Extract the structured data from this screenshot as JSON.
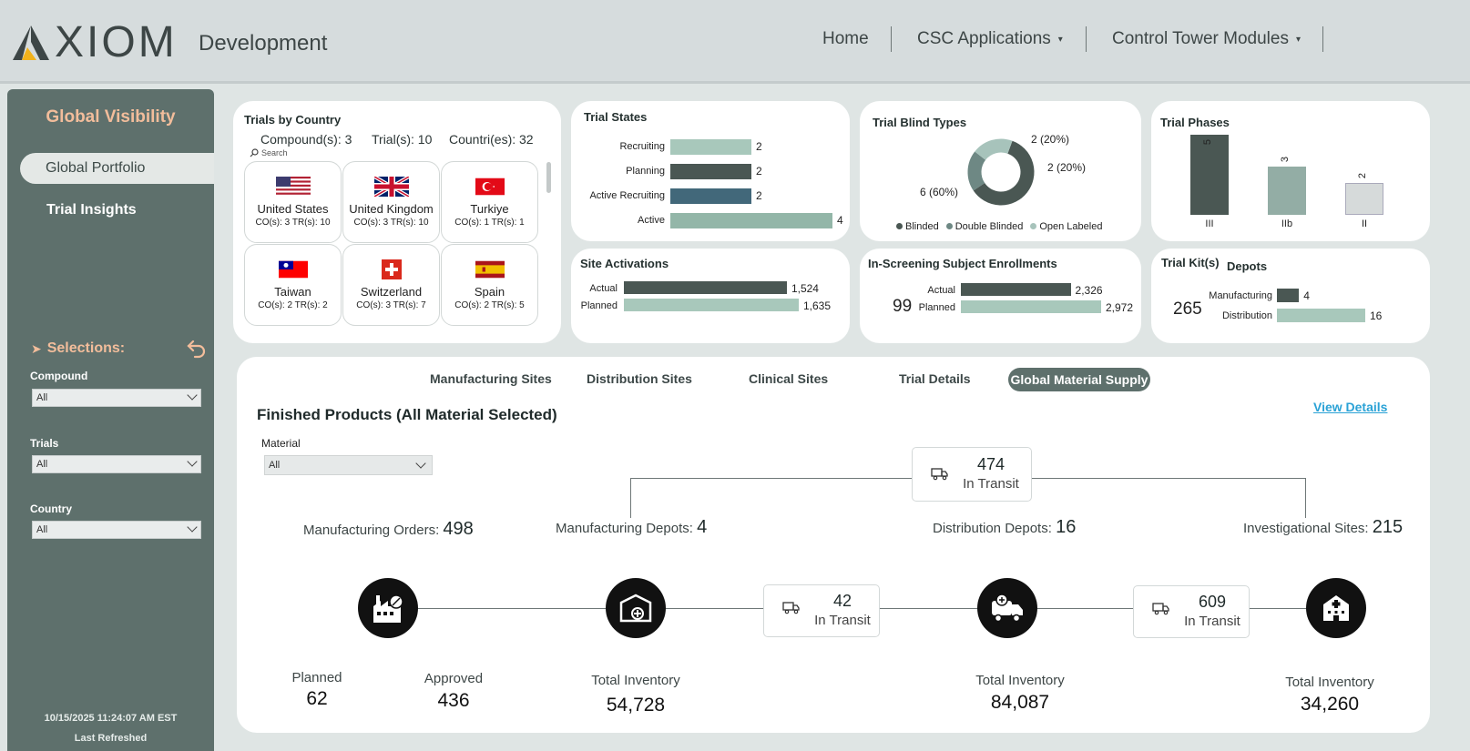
{
  "header": {
    "logo_text": "XIOM",
    "environment": "Development",
    "nav": [
      "Home",
      "CSC Applications",
      "Control Tower Modules"
    ]
  },
  "sidebar": {
    "title": "Global Visibility",
    "items": [
      {
        "label": "Global Portfolio",
        "active": true
      },
      {
        "label": "Trial Insights",
        "active": false
      }
    ],
    "selections_label": "Selections:",
    "filters": [
      {
        "label": "Compound",
        "value": "All"
      },
      {
        "label": "Trials",
        "value": "All"
      },
      {
        "label": "Country",
        "value": "All"
      }
    ],
    "last_refreshed": "10/15/2025 11:24:07 AM EST",
    "last_refreshed_label": "Last Refreshed"
  },
  "trials_by_country": {
    "title": "Trials by Country",
    "compounds": "Compound(s): 3",
    "trials": "Trial(s): 10",
    "countries": "Countri(es): 32",
    "search_placeholder": "Search",
    "tiles": [
      {
        "name": "United States",
        "stat": "CO(s): 3   TR(s): 10",
        "flag": "us-flag"
      },
      {
        "name": "United Kingdom",
        "stat": "CO(s): 3   TR(s): 10",
        "flag": "uk-flag"
      },
      {
        "name": "Turkiye",
        "stat": "CO(s): 1   TR(s): 1",
        "flag": "turkey-flag"
      },
      {
        "name": "Taiwan",
        "stat": "CO(s): 2   TR(s): 2",
        "flag": "taiwan-flag"
      },
      {
        "name": "Switzerland",
        "stat": "CO(s): 3   TR(s): 7",
        "flag": "switzerland-flag"
      },
      {
        "name": "Spain",
        "stat": "CO(s): 2   TR(s): 5",
        "flag": "spain-flag"
      }
    ]
  },
  "trial_states": {
    "title": "Trial States",
    "bars": [
      {
        "label": "Recruiting",
        "value": 2,
        "color": "#a8c8bb"
      },
      {
        "label": "Planning",
        "value": 2,
        "color": "#4a5753"
      },
      {
        "label": "Active Recruiting",
        "value": 2,
        "color": "#42687a"
      },
      {
        "label": "Active",
        "value": 4,
        "color": "#93b6a8"
      }
    ]
  },
  "trial_blind_types": {
    "title": "Trial Blind Types",
    "slices": [
      {
        "name": "Blinded",
        "value": 6,
        "label": "6 (60%)",
        "color": "#4a5753"
      },
      {
        "name": "Double Blinded",
        "value": 2,
        "label": "2 (20%)",
        "color": "#6e8884"
      },
      {
        "name": "Open Labeled",
        "value": 2,
        "label": "2 (20%)",
        "color": "#a7c3bb"
      }
    ]
  },
  "trial_phases": {
    "title": "Trial Phases",
    "bars": [
      {
        "category": "III",
        "value": 5,
        "color": "#4a5753"
      },
      {
        "category": "IIb",
        "value": 3,
        "color": "#93ada5"
      },
      {
        "category": "II",
        "value": 2,
        "color": "#d6dada"
      }
    ]
  },
  "site_activations": {
    "title": "Site Activations",
    "bars": [
      {
        "label": "Actual",
        "value": 1524,
        "text": "1,524",
        "color": "#4a5753"
      },
      {
        "label": "Planned",
        "value": 1635,
        "text": "1,635",
        "color": "#a8c8bb"
      }
    ]
  },
  "subject_enrollments": {
    "in_screening_label": "In-Screening",
    "in_screening_value": "99",
    "title": "Subject Enrollments",
    "bars": [
      {
        "label": "Actual",
        "value": 2326,
        "text": "2,326",
        "color": "#4a5753"
      },
      {
        "label": "Planned",
        "value": 2972,
        "text": "2,972",
        "color": "#a8c8bb"
      }
    ]
  },
  "depots": {
    "kits_label": "Trial Kit(s)",
    "kits_value": "265",
    "title": "Depots",
    "bars": [
      {
        "label": "Manufacturing",
        "value": 4,
        "text": "4",
        "color": "#4a5753"
      },
      {
        "label": "Distribution",
        "value": 16,
        "text": "16",
        "color": "#a8c8bb"
      }
    ]
  },
  "panel": {
    "tabs": [
      "Manufacturing Sites",
      "Distribution Sites",
      "Clinical Sites",
      "Trial Details"
    ],
    "active_tab": "Global Material Supply",
    "title": "Finished Products (All Material Selected)",
    "view_details": "View Details",
    "material_label": "Material",
    "material_value": "All",
    "top_transit": {
      "value": "474",
      "label": "In Transit"
    },
    "mid_transit_1": {
      "value": "42",
      "label": "In Transit"
    },
    "mid_transit_2": {
      "value": "609",
      "label": "In Transit"
    },
    "stages": {
      "mfg_orders_label": "Manufacturing Orders:",
      "mfg_orders_value": "498",
      "mfg_depots_label": "Manufacturing Depots:",
      "mfg_depots_value": "4",
      "dist_depots_label": "Distribution Depots:",
      "dist_depots_value": "16",
      "inv_sites_label": "Investigational Sites:",
      "inv_sites_value": "215"
    },
    "planned_label": "Planned",
    "planned_value": "62",
    "approved_label": "Approved",
    "approved_value": "436",
    "inv1_label": "Total Inventory",
    "inv1_value": "54,728",
    "inv2_label": "Total Inventory",
    "inv2_value": "84,087",
    "inv3_label": "Total Inventory",
    "inv3_value": "34,260"
  }
}
